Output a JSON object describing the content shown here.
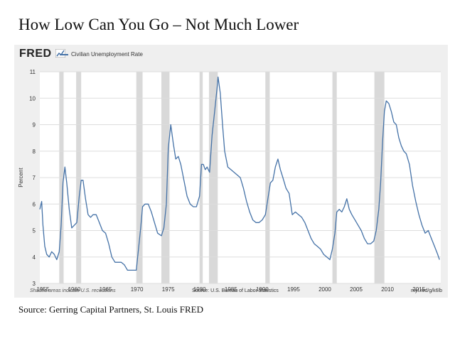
{
  "slide": {
    "title": "How Low Can You Go – Not Much Lower",
    "source": "Source: Gerring Capital Partners, St. Louis FRED"
  },
  "chart_header": {
    "logo_text": "FRED",
    "legend_label": "Civilian Unemployment Rate"
  },
  "footer": {
    "recession_note": "Shaded areas indicate U.S. recessions",
    "source": "Source: U.S. Bureau of Labor Statistics",
    "url": "myf.red/g/k6lb"
  },
  "colors": {
    "line": "#4572a7",
    "recession": "#d9d9d9",
    "background": "#efefef",
    "plot_background": "#ffffff",
    "grid": "#dddddd"
  },
  "chart_data": {
    "type": "line",
    "title": "",
    "xlabel": "",
    "ylabel": "Percent",
    "xlim": [
      1954.5,
      2018.5
    ],
    "ylim": [
      3,
      11
    ],
    "x_ticks": [
      "1955",
      "1960",
      "1965",
      "1970",
      "1975",
      "1980",
      "1985",
      "1990",
      "1995",
      "2000",
      "2005",
      "2010",
      "2015"
    ],
    "y_ticks": [
      "3",
      "4",
      "5",
      "6",
      "7",
      "8",
      "9",
      "10",
      "11"
    ],
    "grid": true,
    "legend_position": "top-left",
    "recessions": [
      [
        1957.6,
        1958.3
      ],
      [
        1960.3,
        1961.1
      ],
      [
        1969.9,
        1970.9
      ],
      [
        1973.9,
        1975.2
      ],
      [
        1980.0,
        1980.5
      ],
      [
        1981.5,
        1982.9
      ],
      [
        1990.5,
        1991.2
      ],
      [
        2001.2,
        2001.9
      ],
      [
        2007.9,
        2009.5
      ]
    ],
    "series": [
      {
        "name": "Civilian Unemployment Rate",
        "x": [
          1954.5,
          1954.8,
          1955.0,
          1955.3,
          1955.6,
          1956.0,
          1956.4,
          1956.8,
          1957.2,
          1957.6,
          1957.9,
          1958.2,
          1958.5,
          1958.8,
          1959.2,
          1959.6,
          1960.0,
          1960.4,
          1960.8,
          1961.1,
          1961.4,
          1961.8,
          1962.2,
          1962.6,
          1963.0,
          1963.5,
          1964.0,
          1964.5,
          1965.0,
          1965.5,
          1966.0,
          1966.5,
          1967.0,
          1967.5,
          1968.0,
          1968.5,
          1969.0,
          1969.5,
          1969.9,
          1970.3,
          1970.6,
          1970.9,
          1971.3,
          1971.8,
          1972.3,
          1972.8,
          1973.3,
          1973.9,
          1974.3,
          1974.7,
          1975.0,
          1975.4,
          1975.8,
          1976.2,
          1976.6,
          1977.0,
          1977.5,
          1978.0,
          1978.5,
          1979.0,
          1979.5,
          1980.0,
          1980.3,
          1980.6,
          1980.9,
          1981.2,
          1981.6,
          1982.0,
          1982.4,
          1982.8,
          1982.95,
          1983.3,
          1983.7,
          1984.0,
          1984.5,
          1985.0,
          1985.5,
          1986.0,
          1986.5,
          1987.0,
          1987.5,
          1988.0,
          1988.5,
          1989.0,
          1989.5,
          1990.0,
          1990.5,
          1990.9,
          1991.3,
          1991.7,
          1992.1,
          1992.5,
          1992.9,
          1993.3,
          1993.8,
          1994.3,
          1994.8,
          1995.3,
          1995.8,
          1996.3,
          1996.8,
          1997.3,
          1997.8,
          1998.3,
          1998.8,
          1999.3,
          1999.8,
          2000.3,
          2000.8,
          2001.2,
          2001.6,
          2001.9,
          2002.3,
          2002.7,
          2003.1,
          2003.5,
          2003.9,
          2004.3,
          2004.8,
          2005.3,
          2005.8,
          2006.3,
          2006.8,
          2007.3,
          2007.8,
          2008.2,
          2008.6,
          2008.9,
          2009.2,
          2009.5,
          2009.8,
          2010.2,
          2010.6,
          2011.0,
          2011.4,
          2011.8,
          2012.2,
          2012.6,
          2013.0,
          2013.5,
          2014.0,
          2014.5,
          2015.0,
          2015.5,
          2016.0,
          2016.5,
          2017.0,
          2017.5,
          2018.0,
          2018.3
        ],
        "y": [
          5.8,
          6.1,
          5.2,
          4.4,
          4.1,
          4.0,
          4.2,
          4.1,
          3.9,
          4.2,
          5.2,
          6.8,
          7.4,
          6.8,
          5.8,
          5.1,
          5.2,
          5.3,
          6.3,
          6.9,
          6.9,
          6.2,
          5.6,
          5.5,
          5.6,
          5.6,
          5.3,
          5.0,
          4.9,
          4.5,
          4.0,
          3.8,
          3.8,
          3.8,
          3.7,
          3.5,
          3.5,
          3.5,
          3.5,
          4.4,
          5.1,
          5.9,
          6.0,
          6.0,
          5.7,
          5.3,
          4.9,
          4.8,
          5.1,
          6.0,
          8.1,
          9.0,
          8.3,
          7.7,
          7.8,
          7.5,
          6.9,
          6.3,
          6.0,
          5.9,
          5.9,
          6.3,
          7.5,
          7.5,
          7.3,
          7.4,
          7.2,
          8.6,
          9.5,
          10.4,
          10.8,
          10.2,
          8.9,
          8.0,
          7.4,
          7.3,
          7.2,
          7.1,
          7.0,
          6.6,
          6.1,
          5.7,
          5.4,
          5.3,
          5.3,
          5.4,
          5.6,
          6.2,
          6.8,
          6.9,
          7.4,
          7.7,
          7.3,
          7.0,
          6.6,
          6.4,
          5.6,
          5.7,
          5.6,
          5.5,
          5.3,
          5.0,
          4.7,
          4.5,
          4.4,
          4.3,
          4.1,
          4.0,
          3.9,
          4.3,
          4.9,
          5.7,
          5.8,
          5.7,
          5.9,
          6.2,
          5.8,
          5.6,
          5.4,
          5.2,
          5.0,
          4.7,
          4.5,
          4.5,
          4.6,
          5.0,
          5.8,
          6.8,
          8.3,
          9.5,
          9.9,
          9.8,
          9.5,
          9.1,
          9.0,
          8.5,
          8.2,
          8.0,
          7.9,
          7.5,
          6.7,
          6.1,
          5.6,
          5.2,
          4.9,
          5.0,
          4.7,
          4.4,
          4.1,
          3.9
        ]
      }
    ]
  }
}
